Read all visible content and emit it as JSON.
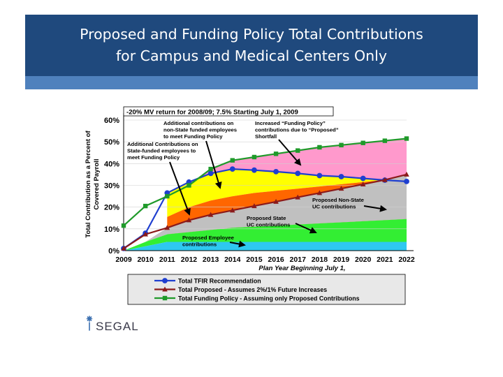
{
  "slide": {
    "title_line1": "Proposed and Funding Policy Total Contributions",
    "title_line2": "for Campus and Medical Centers Only",
    "logo_text": "SEGAL"
  },
  "colors": {
    "header": "#1f497d",
    "stripe": "#4f81bd",
    "tfir": "#1f3fd0",
    "proposed": "#8b1a1a",
    "funding": "#1f9a2a",
    "employee": "#2ec8f0",
    "state": "#33ee33",
    "nonstate": "#c0c0c0",
    "add_state": "#ff6600",
    "add_nonstate": "#ffff00",
    "shortfall": "#ff99cc"
  },
  "chart_data": {
    "type": "area",
    "title": "-20% MV return for 2008/09; 7.5% Starting July 1, 2009",
    "xlabel": "Plan Year Beginning July 1,",
    "ylabel_line1": "Total Contribution as a Percent of",
    "ylabel_line2": "Covered Payroll",
    "x": [
      2009,
      2010,
      2011,
      2012,
      2013,
      2014,
      2015,
      2016,
      2017,
      2018,
      2019,
      2020,
      2021,
      2022
    ],
    "x_ticks": [
      "2009",
      "2010",
      "2011",
      "2012",
      "2013",
      "2014",
      "2015",
      "2016",
      "2017",
      "2018",
      "2019",
      "2020",
      "2021",
      "2022"
    ],
    "y_ticks": [
      "0%",
      "10%",
      "20%",
      "30%",
      "40%",
      "50%",
      "60%"
    ],
    "ylim": [
      0,
      60
    ],
    "grid": true,
    "series": [
      {
        "name": "Total TFIR Recommendation",
        "values": [
          1,
          8,
          26.5,
          31.5,
          35.5,
          37.5,
          37,
          36.3,
          35.5,
          34.5,
          34,
          33.2,
          32.4,
          31.8
        ]
      },
      {
        "name": "Total Proposed - Assumes 2%/1% Future Increases",
        "values": [
          1,
          7.5,
          10.5,
          14,
          16.5,
          18.5,
          20.5,
          22.5,
          24.5,
          26.5,
          28.5,
          30.5,
          32.5,
          35
        ]
      },
      {
        "name": "Total Funding Policy - Assuming only Proposed Contributions",
        "values": [
          11.5,
          20.5,
          25,
          30,
          37.5,
          41.5,
          43,
          44.5,
          46,
          47.5,
          48.5,
          49.5,
          50.5,
          51.5
        ]
      }
    ],
    "areas": {
      "employee": [
        0,
        2,
        4,
        4,
        4,
        4,
        4,
        4,
        4,
        4,
        4,
        4,
        4,
        4
      ],
      "state_top": [
        0,
        4,
        7.5,
        8.5,
        9.5,
        10.5,
        11,
        11.5,
        12,
        12.5,
        13,
        13.5,
        14,
        14.5
      ],
      "add_state_top": [
        null,
        null,
        15.5,
        20,
        23,
        25,
        26.5,
        27.5,
        28.5,
        29.5,
        30.5,
        31.5,
        32.5,
        33.5
      ],
      "add_nonstate_top": [
        null,
        null,
        26.5,
        31.5,
        35.5,
        37.5,
        37,
        36.3,
        35.5,
        34.5,
        34,
        33.2,
        32.4,
        31.8
      ]
    },
    "annotations": [
      "Additional contributions on",
      "non-State funded employees",
      "to meet Funding Policy",
      "Increased “Funding Policy”",
      "contributions due to “Proposed”",
      "Shortfall",
      "Additional Contributions on",
      "State-funded employees to",
      "meet Funding Policy",
      "Proposed Non-State",
      "UC contributions",
      "Proposed State",
      "UC contributions",
      "Proposed Employee",
      "contributions"
    ],
    "legend_position": "bottom"
  }
}
